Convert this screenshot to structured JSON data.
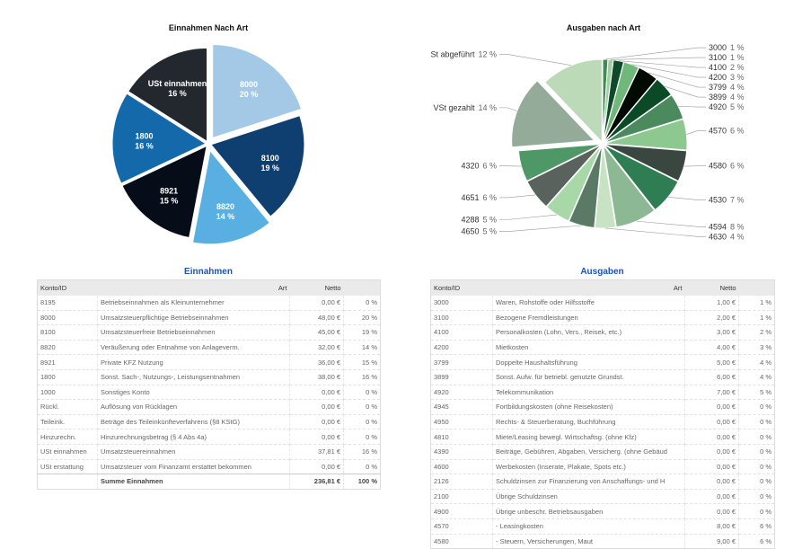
{
  "chart_data": [
    {
      "type": "pie",
      "title": "Einnahmen Nach Art",
      "slices": [
        {
          "label": "8000",
          "value": 20,
          "color": "#a3c9e6"
        },
        {
          "label": "8100",
          "value": 19,
          "color": "#0e3f70"
        },
        {
          "label": "8820",
          "value": 14,
          "color": "#5aafe2"
        },
        {
          "label": "8921",
          "value": 15,
          "color": "#060d18"
        },
        {
          "label": "1800",
          "value": 16,
          "color": "#1369aa"
        },
        {
          "label": "USt einnahmen",
          "value": 16,
          "color": "#23282f"
        }
      ]
    },
    {
      "type": "pie",
      "title": "Ausgaben nach Art",
      "slices": [
        {
          "label": "3000",
          "value": 1,
          "color": "#3f8a55"
        },
        {
          "label": "3100",
          "value": 1,
          "color": "#9fd0a0"
        },
        {
          "label": "4100",
          "value": 2,
          "color": "#0f4a2a"
        },
        {
          "label": "4200",
          "value": 3,
          "color": "#6fb87a"
        },
        {
          "label": "3799",
          "value": 4,
          "color": "#020a04"
        },
        {
          "label": "3899",
          "value": 4,
          "color": "#0a4a26"
        },
        {
          "label": "4920",
          "value": 5,
          "color": "#4a8a5c"
        },
        {
          "label": "4570",
          "value": 6,
          "color": "#8cc890"
        },
        {
          "label": "4580",
          "value": 6,
          "color": "#3a4640"
        },
        {
          "label": "4530",
          "value": 7,
          "color": "#2f7d52"
        },
        {
          "label": "4594",
          "value": 8,
          "color": "#8cb894"
        },
        {
          "label": "4630",
          "value": 4,
          "color": "#c8e2c4"
        },
        {
          "label": "4650",
          "value": 5,
          "color": "#5a7a66"
        },
        {
          "label": "4288",
          "value": 5,
          "color": "#a8d8a8"
        },
        {
          "label": "4651",
          "value": 6,
          "color": "#5a625e"
        },
        {
          "label": "4320",
          "value": 6,
          "color": "#4e9868"
        },
        {
          "label": "VSt gezahlt",
          "value": 14,
          "color": "#93ab98"
        },
        {
          "label": "VSt abgeführt",
          "value": 12,
          "color": "#bcdab8"
        }
      ]
    }
  ],
  "einnahmen": {
    "title": "Einnahmen",
    "headers": [
      "Konto/ID",
      "Art",
      "Netto",
      ""
    ],
    "rows": [
      [
        "8195",
        "Betriebseinnahmen als Kleinunternehmer",
        "0,00 €",
        "0 %"
      ],
      [
        "8000",
        "Umsatzsteuerpflichtige Betriebseinnahmen",
        "48,00 €",
        "20 %"
      ],
      [
        "8100",
        "Umsatzsteuerfreie Betriebseinnahmen",
        "45,00 €",
        "19 %"
      ],
      [
        "8820",
        "Veräußerung oder Entnahme von Anlageverm.",
        "32,00 €",
        "14 %"
      ],
      [
        "8921",
        "Private KFZ Nutzung",
        "36,00 €",
        "15 %"
      ],
      [
        "1800",
        "Sonst. Sach-, Nutzungs-, Leistungsentnahmen",
        "38,00 €",
        "16 %"
      ],
      [
        "1000",
        "Sonstiges Konto",
        "0,00 €",
        "0 %"
      ],
      [
        "Rückl.",
        "Auflösung von Rücklagen",
        "0,00 €",
        "0 %"
      ],
      [
        "Teileink.",
        "Beträge des Teileinkünfteverfahrens (§8 KStG)",
        "0,00 €",
        "0 %"
      ],
      [
        "Hinzurechn.",
        "Hinzurechnungsbetrag (§ 4 Abs 4a)",
        "0,00 €",
        "0 %"
      ],
      [
        "USt einnahmen",
        "Umsatzsteuereinnahmen",
        "37,81 €",
        "16 %"
      ],
      [
        "USt erstattung",
        "Umsatzsteuer vom Finanzamt erstattet bekommen",
        "0,00 €",
        "0 %"
      ]
    ],
    "sum": [
      "",
      "Summe Einnahmen",
      "236,81 €",
      "100 %"
    ]
  },
  "ausgaben": {
    "title": "Ausgaben",
    "headers": [
      "Konto/ID",
      "Art",
      "Netto",
      ""
    ],
    "rows": [
      [
        "3000",
        "Waren, Rohstoffe oder Hilfsstoffe",
        "1,00 €",
        "1 %"
      ],
      [
        "3100",
        "Bezogene Fremdleistungen",
        "2,00 €",
        "1 %"
      ],
      [
        "4100",
        "Personalkosten (Lohn, Vers., Reisek, etc.)",
        "3,00 €",
        "2 %"
      ],
      [
        "4200",
        "Mietkosten",
        "4,00 €",
        "3 %"
      ],
      [
        "3799",
        "Doppelte Haushaltsführung",
        "5,00 €",
        "4 %"
      ],
      [
        "3899",
        "Sonst. Aufw. für betriebl. genutzte Grundst.",
        "6,00 €",
        "4 %"
      ],
      [
        "4920",
        "Telekommunikation",
        "7,00 €",
        "5 %"
      ],
      [
        "4945",
        "Fortbildungskosten (ohne Reisekosten)",
        "0,00 €",
        "0 %"
      ],
      [
        "4950",
        "Rechts- & Steuerberatung, Buchführung",
        "0,00 €",
        "0 %"
      ],
      [
        "4810",
        "Miete/Leasing bewegl. Wirtschaftsg. (ohne Kfz)",
        "0,00 €",
        "0 %"
      ],
      [
        "4390",
        "Beiträge, Gebühren, Abgaben, Versicherg. (ohne Gebäud",
        "0,00 €",
        "0 %"
      ],
      [
        "4600",
        "Werbekosten (Inserate, Plakate, Spots etc.)",
        "0,00 €",
        "0 %"
      ],
      [
        "2126",
        "Schuldzinsen zur Finanzierung von Anschaffungs- und H",
        "0,00 €",
        "0 %"
      ],
      [
        "2100",
        "Übrige Schuldzinsen",
        "0,00 €",
        "0 %"
      ],
      [
        "4900",
        "Übrige unbeschr. Betriebsausgaben",
        "0,00 €",
        "0 %"
      ],
      [
        "4570",
        "-  Leasingkosten",
        "8,00 €",
        "6 %"
      ],
      [
        "4580",
        "-  Steuern, Versicherungen, Maut",
        "9,00 €",
        "6 %"
      ]
    ]
  }
}
